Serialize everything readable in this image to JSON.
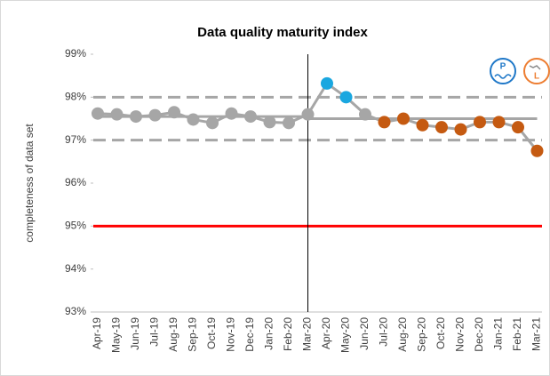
{
  "chart_data": {
    "type": "line",
    "title": "Data quality maturity index",
    "ylabel": "completeness of data set",
    "categories": [
      "Apr-19",
      "May-19",
      "Jun-19",
      "Jul-19",
      "Aug-19",
      "Sep-19",
      "Oct-19",
      "Nov-19",
      "Dec-19",
      "Jan-20",
      "Feb-20",
      "Mar-20",
      "Apr-20",
      "May-20",
      "Jun-20",
      "Jul-20",
      "Aug-20",
      "Sep-20",
      "Oct-20",
      "Nov-20",
      "Dec-20",
      "Jan-21",
      "Feb-21",
      "Mar-21"
    ],
    "series": [
      {
        "color": "#a6a6a6",
        "values": [
          97.62,
          97.6,
          97.55,
          97.58,
          97.65,
          97.48,
          97.4,
          97.62,
          97.55,
          97.42,
          97.4,
          97.6,
          98.32,
          98.0,
          97.6,
          97.42,
          97.5,
          97.35,
          97.3,
          97.25,
          97.42,
          97.42,
          97.3,
          96.75
        ],
        "marker_colors": [
          "#a6a6a6",
          "#a6a6a6",
          "#a6a6a6",
          "#a6a6a6",
          "#a6a6a6",
          "#a6a6a6",
          "#a6a6a6",
          "#a6a6a6",
          "#a6a6a6",
          "#a6a6a6",
          "#a6a6a6",
          "#a6a6a6",
          "#1aa7e0",
          "#1aa7e0",
          "#a6a6a6",
          "#c55a11",
          "#c55a11",
          "#c55a11",
          "#c55a11",
          "#c55a11",
          "#c55a11",
          "#c55a11",
          "#c55a11",
          "#c55a11"
        ]
      }
    ],
    "reference_lines": [
      {
        "value": 98,
        "style": "dashed",
        "color": "#a6a6a6"
      },
      {
        "value": 97,
        "style": "dashed",
        "color": "#a6a6a6"
      },
      {
        "value": 97.55,
        "style": "solid",
        "color": "#a6a6a6",
        "from": "Apr-19",
        "to": "Mar-20"
      },
      {
        "value": 97.5,
        "style": "solid",
        "color": "#a6a6a6",
        "from": "Mar-20",
        "to": "Mar-21"
      },
      {
        "value": 95,
        "style": "solid",
        "color": "#ff0000"
      }
    ],
    "vline": "Mar-20",
    "ylim": [
      93,
      99
    ],
    "yticks": [
      {
        "value": 93,
        "label": "93%"
      },
      {
        "value": 94,
        "label": "94%"
      },
      {
        "value": 95,
        "label": "95%"
      },
      {
        "value": 96,
        "label": "96%"
      },
      {
        "value": 97,
        "label": "97%"
      },
      {
        "value": 98,
        "label": "98%"
      },
      {
        "value": 99,
        "label": "99%"
      }
    ],
    "icons": [
      "P",
      "L"
    ]
  }
}
